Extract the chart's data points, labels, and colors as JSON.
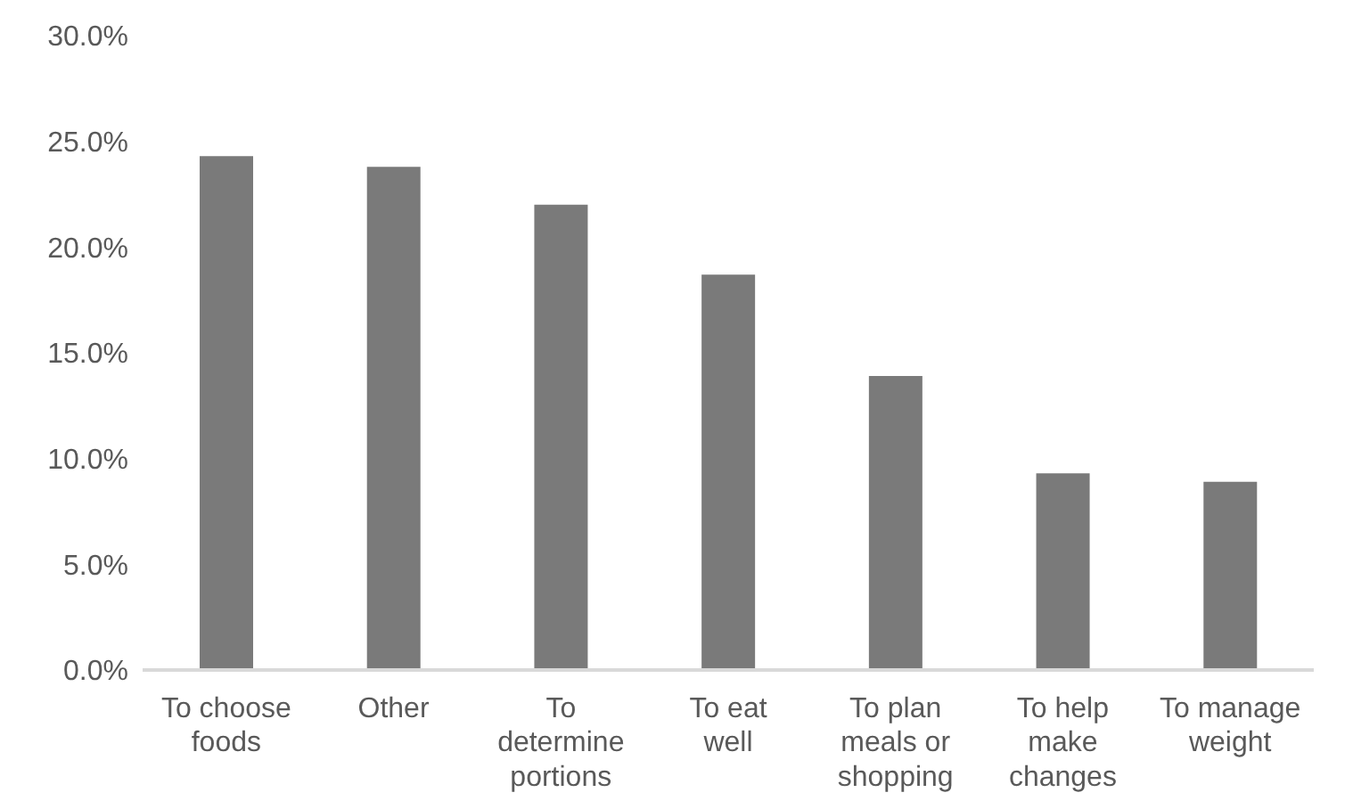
{
  "chart_data": {
    "type": "bar",
    "categories": [
      "To choose foods",
      "Other",
      "To determine portions",
      "To eat well",
      "To plan meals or shopping",
      "To help make changes",
      "To manage weight"
    ],
    "values": [
      24.3,
      23.8,
      22.0,
      18.7,
      13.9,
      9.3,
      8.9
    ],
    "color": "#7a7a7a",
    "ylim": [
      0,
      30
    ],
    "yticks": [
      {
        "value": 0,
        "label": "0.0%"
      },
      {
        "value": 5,
        "label": "5.0%"
      },
      {
        "value": 10,
        "label": "10.0%"
      },
      {
        "value": 15,
        "label": "15.0%"
      },
      {
        "value": 20,
        "label": "20.0%"
      },
      {
        "value": 25,
        "label": "25.0%"
      },
      {
        "value": 30,
        "label": "30.0%"
      }
    ],
    "grid": false,
    "legend": false
  }
}
